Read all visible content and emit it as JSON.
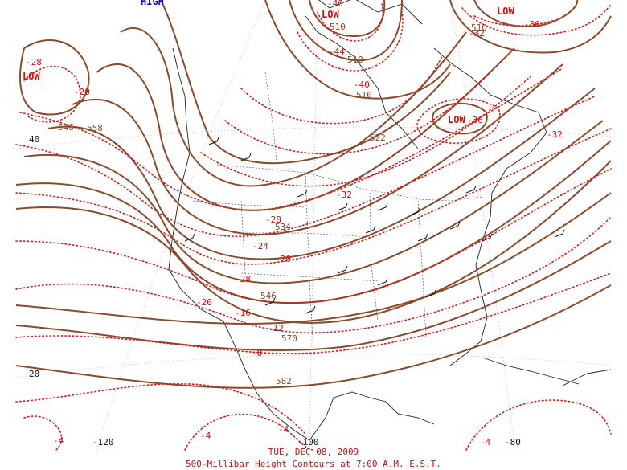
{
  "map": {
    "date_label": "TUE, DEC 08, 2009",
    "caption": "500-Millibar Height Contours at 7:00 A.M. E.S.T.",
    "colors": {
      "height_contour": "#8b4a2b",
      "temperature_isotherm": "#d21e1e",
      "pressure_center": "#cc1010",
      "high_center": "#1010cc"
    },
    "centers": [
      {
        "id": "low-west",
        "text": "LOW"
      },
      {
        "id": "low-north",
        "text": "LOW"
      },
      {
        "id": "low-ne",
        "text": "LOW"
      },
      {
        "id": "low-east",
        "text": "LOW"
      },
      {
        "id": "high-top",
        "text": "HIGH"
      }
    ],
    "height_labels": [
      "546",
      "558",
      "522",
      "510",
      "510",
      "510",
      "534",
      "546",
      "570",
      "582",
      "510"
    ],
    "temp_labels": [
      "-28",
      "-20",
      "-40",
      "-40",
      "-44",
      "-36",
      "-32",
      "-36",
      "-32",
      "-32",
      "-28",
      "-24",
      "-20",
      "-28",
      "-20",
      "-16",
      "-12",
      "-8",
      "-4",
      "-4",
      "-4",
      "-4"
    ],
    "lat_labels": [
      "40",
      "20"
    ],
    "lon_labels": [
      "-120",
      "-100",
      "-80"
    ]
  }
}
